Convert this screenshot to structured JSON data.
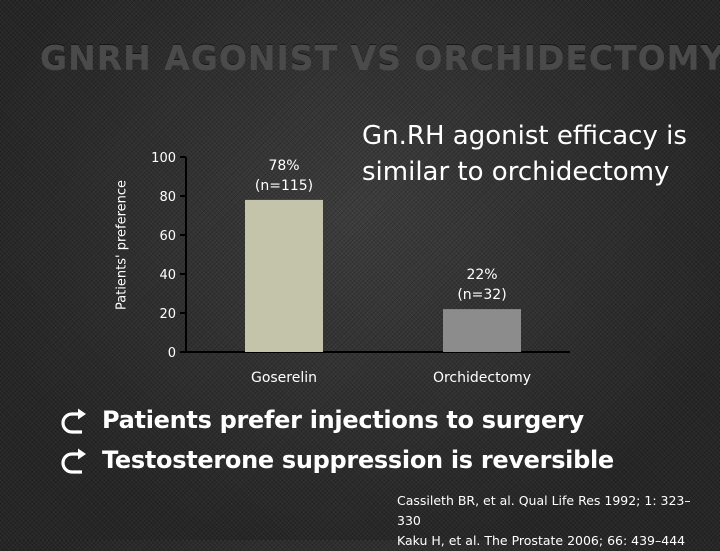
{
  "slide": {
    "title": "GNRH AGONIST VS ORCHIDECTOMY",
    "callout": "Gn.RH agonist efficacy is similar to orchidectomy",
    "bullets": [
      {
        "icon": "curved-arrow-right-icon",
        "text": "Patients prefer injections to surgery"
      },
      {
        "icon": "curved-arrow-right-icon",
        "text": "Testosterone suppression is reversible"
      }
    ],
    "citation": [
      "Cassileth BR, et al. Qual Life Res 1992; 1: 323–",
      "330",
      "Kaku H, et al. The Prostate 2006; 66: 439–444"
    ]
  },
  "chart_data": {
    "type": "bar",
    "ylabel": "Patients' preference",
    "ylim": [
      0,
      100
    ],
    "yticks": [
      0,
      20,
      40,
      60,
      80,
      100
    ],
    "categories": [
      "Goserelin",
      "Orchidectomy"
    ],
    "values": [
      78,
      22
    ],
    "data_labels": [
      [
        "78%",
        "(n=115)"
      ],
      [
        "22%",
        "(n=32)"
      ]
    ],
    "colors": [
      "#c4c4aa",
      "#8c8c8c"
    ],
    "axis_color": "#000000",
    "grid": false
  }
}
